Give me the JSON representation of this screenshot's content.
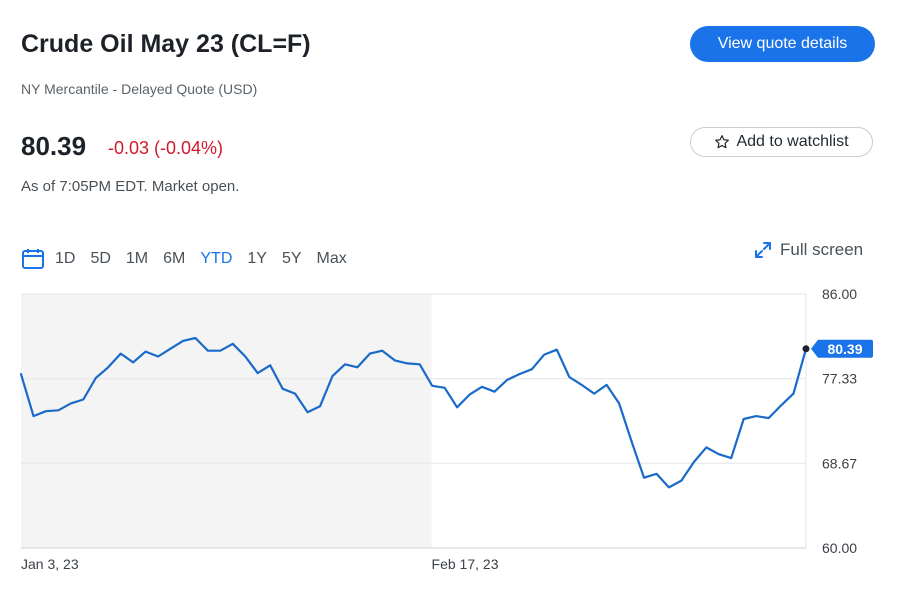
{
  "header": {
    "title": "Crude Oil May 23 (CL=F)",
    "subtitle": "NY Mercantile - Delayed Quote (USD)",
    "price": "80.39",
    "change": "-0.03 (-0.04%)",
    "as_of": "As of 7:05PM EDT. Market open.",
    "view_quote_label": "View quote details",
    "watchlist_label": "Add to watchlist",
    "watchlist_icon": "star-icon"
  },
  "toolbar": {
    "calendar_icon": "calendar-icon",
    "ranges": [
      "1D",
      "5D",
      "1M",
      "6M",
      "YTD",
      "1Y",
      "5Y",
      "Max"
    ],
    "active_range": "YTD",
    "fullscreen_label": "Full screen",
    "fullscreen_icon": "expand-icon"
  },
  "colors": {
    "line": "#1a6ac9",
    "accent": "#1a73e8",
    "negative": "#d0192b",
    "shade": "#f4f4f4"
  },
  "chart_data": {
    "type": "line",
    "y_ticks": [
      "86.00",
      "77.33",
      "68.67",
      "60.00"
    ],
    "x_tick_labels": [
      "Jan 3, 23",
      "Feb 17, 23"
    ],
    "ylim": [
      60,
      86
    ],
    "current_label": "80.39",
    "series": [
      {
        "values": [
          77.8,
          73.5,
          74.0,
          74.1,
          74.8,
          75.2,
          77.4,
          78.5,
          79.9,
          79.0,
          80.1,
          79.6,
          80.4,
          81.2,
          81.5,
          80.2,
          80.2,
          80.9,
          79.6,
          77.9,
          78.7,
          76.3,
          75.8,
          73.9,
          74.5,
          77.6,
          78.8,
          78.5,
          79.9,
          80.2,
          79.2,
          78.9,
          78.8,
          76.6,
          76.4,
          74.4,
          75.7,
          76.5,
          76.0,
          77.2,
          77.8,
          78.3,
          79.8,
          80.3,
          77.5,
          76.7,
          75.8,
          76.7,
          74.8,
          70.9,
          67.2,
          67.6,
          66.2,
          66.9,
          68.8,
          70.3,
          69.6,
          69.2,
          73.2,
          73.5,
          73.3,
          74.6,
          75.8,
          80.39
        ]
      }
    ]
  }
}
